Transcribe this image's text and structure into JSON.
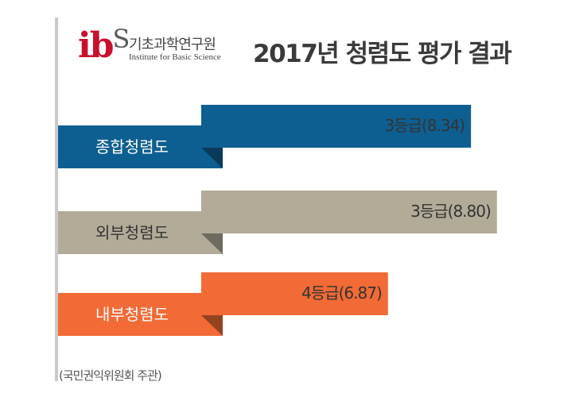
{
  "logo": {
    "mark_i": "i",
    "mark_b": "b",
    "mark_s": "S",
    "name_ko": "기초과학연구원",
    "name_en": "Institute for Basic Science"
  },
  "title": "2017년 청렴도 평가 결과",
  "source": "(국민권익위원회 주관)",
  "colors": {
    "종합청렴도": "#0e5f91",
    "외부청렴도": "#b2ab98",
    "내부청렴도": "#f26a35"
  },
  "chart_data": {
    "type": "bar",
    "orientation": "horizontal",
    "categories": [
      "종합청렴도",
      "외부청렴도",
      "내부청렴도"
    ],
    "values": [
      8.34,
      8.8,
      6.87
    ],
    "grades": [
      3,
      3,
      4
    ],
    "value_labels": [
      "3등급(8.34)",
      "3등급(8.80)",
      "4등급(6.87)"
    ],
    "title": "2017년 청렴도 평가 결과",
    "xlabel": "",
    "ylabel": "",
    "grid": false,
    "legend": "none"
  }
}
